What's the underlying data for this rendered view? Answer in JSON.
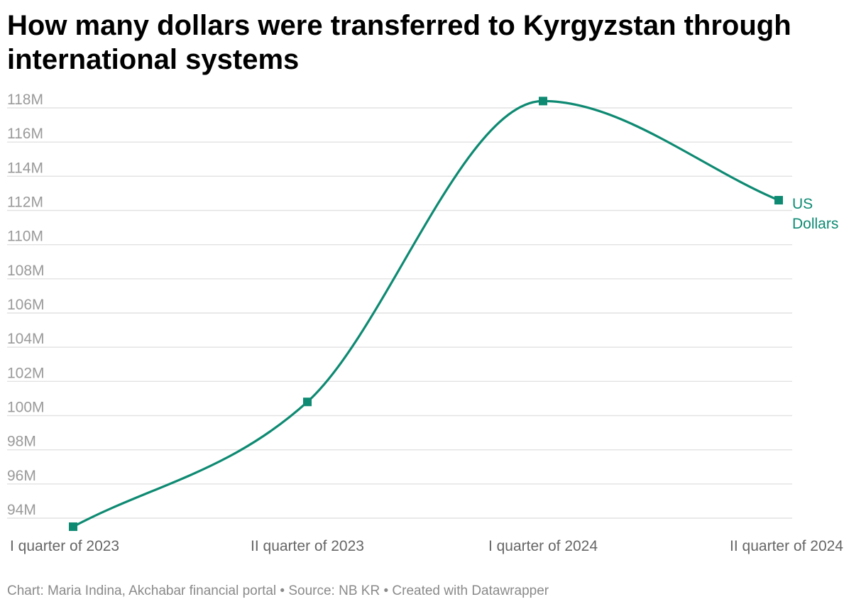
{
  "chart_data": {
    "type": "line",
    "title": "How many dollars were transferred to Kyrgyzstan through international systems",
    "categories": [
      "I quarter of 2023",
      "II quarter of 2023",
      "I quarter of 2024",
      "II quarter of 2024"
    ],
    "series": [
      {
        "name": "US Dollars",
        "label_lines": [
          "US",
          "Dollars"
        ],
        "values": [
          93.5,
          100.8,
          118.4,
          112.6
        ],
        "color": "#0e8a72"
      }
    ],
    "ylim": [
      94,
      118
    ],
    "y_ticks": [
      94,
      96,
      98,
      100,
      102,
      104,
      106,
      108,
      110,
      112,
      114,
      116,
      118
    ],
    "y_tick_labels": [
      "94M",
      "96M",
      "98M",
      "100M",
      "102M",
      "104M",
      "106M",
      "108M",
      "110M",
      "112M",
      "114M",
      "116M",
      "118M"
    ],
    "grid": true,
    "legend": "inline-right",
    "xlabel": "",
    "ylabel": ""
  },
  "footer": {
    "text": "Chart: Maria Indina, Akchabar financial portal • Source: NB KR • Created with Datawrapper"
  },
  "colors": {
    "gridline": "#e2e2e2",
    "tick_text": "#9a9a9a"
  }
}
